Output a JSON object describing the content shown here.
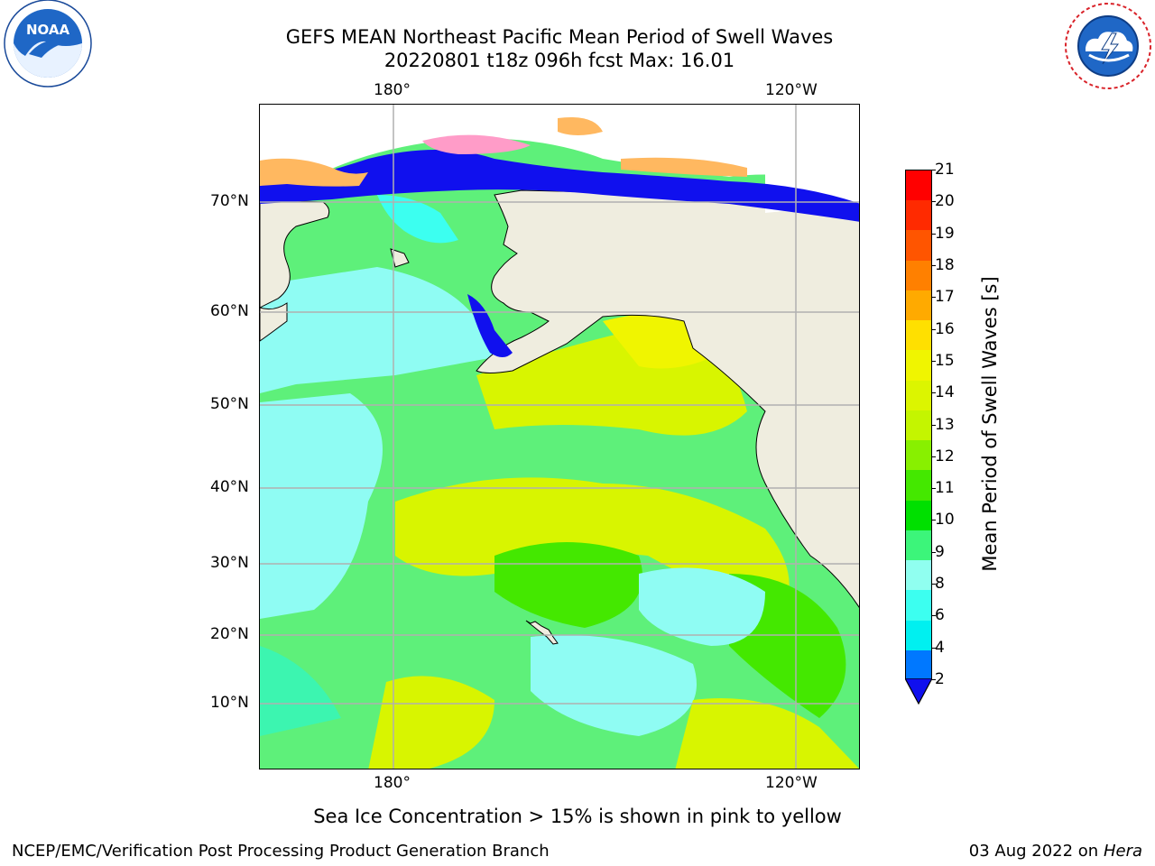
{
  "header": {
    "title_line1": "GEFS MEAN Northeast Pacific Mean Period of Swell Waves",
    "title_line2": "20220801 t18z 096h fcst   Max: 16.01"
  },
  "logos": {
    "left": "NOAA",
    "left_ring_text": "NATIONAL OCEANIC AND ATMOSPHERIC ADMINISTRATION · U.S. DEPARTMENT OF COMMERCE",
    "right_ring_text": "NATIONAL WEATHER SERVICE"
  },
  "map": {
    "lon_labels": [
      "180°",
      "120°W"
    ],
    "lat_labels": [
      "70°N",
      "60°N",
      "50°N",
      "40°N",
      "30°N",
      "20°N",
      "10°N"
    ]
  },
  "colorbar": {
    "label": "Mean Period of Swell Waves [s]",
    "ticks": [
      "21",
      "20",
      "19",
      "18",
      "17",
      "16",
      "15",
      "14",
      "13",
      "12",
      "11",
      "10",
      "9",
      "8",
      "6",
      "4",
      "2"
    ],
    "colors": [
      "#ff0000",
      "#ff2a00",
      "#ff5500",
      "#ff8000",
      "#ffaa00",
      "#ffe000",
      "#f0f500",
      "#dcf500",
      "#c4f500",
      "#88f000",
      "#44e800",
      "#00e000",
      "#3cf57a",
      "#90fff0",
      "#3cfff0",
      "#00f0f0",
      "#0078ff"
    ]
  },
  "footer": {
    "note": "Sea Ice Concentration > 15% is shown in pink to yellow",
    "left": "NCEP/EMC/Verification Post Processing Product Generation Branch",
    "right_date": "03 Aug 2022 on",
    "right_host": "Hera"
  }
}
